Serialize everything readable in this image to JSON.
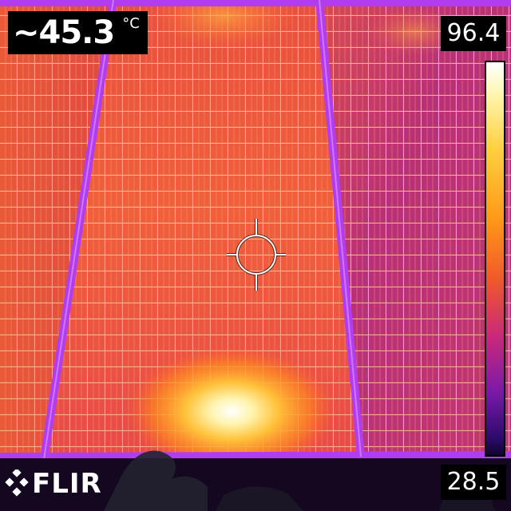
{
  "readout": {
    "value": "~45.3",
    "unit": "°C"
  },
  "scale": {
    "max": "96.4",
    "min": "28.5"
  },
  "logo": {
    "text": "FLIR"
  },
  "colors": {
    "panel_hot": "#f2603a",
    "panel_cool": "#b02f8a",
    "frame": "#b03cf0",
    "grid_line": "#ffb48a",
    "hotspot": "#fff6c8"
  },
  "icons": {
    "crosshair": "crosshair-icon",
    "logo_mark": "flir-logo-icon"
  }
}
